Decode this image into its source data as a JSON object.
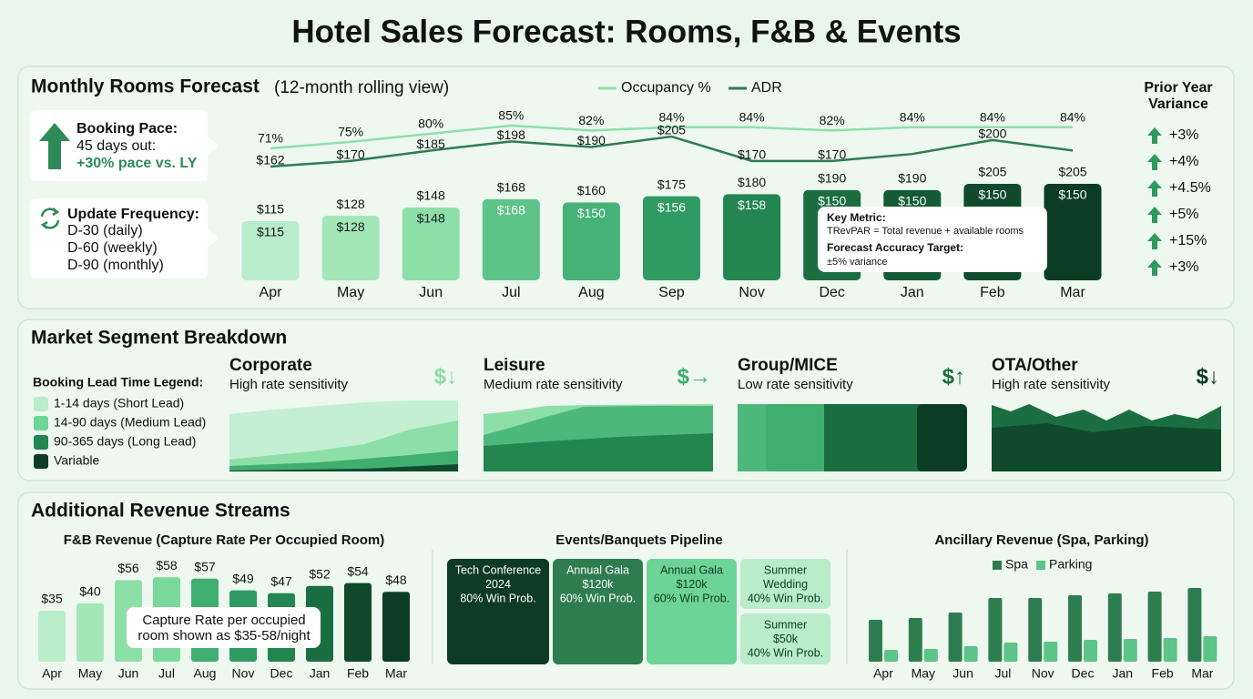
{
  "title": "Hotel Sales Forecast: Rooms, F&B & Events",
  "rooms": {
    "heading": "Monthly Rooms Forecast",
    "subheading": "(12-month rolling view)",
    "booking_pace": {
      "title": "Booking Pace:",
      "lines": [
        "45 days out:"
      ],
      "highlight": "+30% pace vs. LY"
    },
    "update_frequency": {
      "title": "Update Frequency:",
      "lines": [
        "D-30 (daily)",
        "D-60 (weekly)",
        "D-90 (monthly)"
      ]
    },
    "key_metric": {
      "title": "Key Metric:",
      "text": "TRevPAR = Total revenue + available rooms",
      "target_title": "Forecast Accuracy Target:",
      "target_text": "±5% variance"
    },
    "prior_year": {
      "title": [
        "Prior Year",
        "Variance"
      ],
      "values": [
        "+3%",
        "+4%",
        "+4.5%",
        "+5%",
        "+15%",
        "+3%"
      ],
      "color": "#2e9a5e"
    }
  },
  "segments": {
    "heading": "Market Segment Breakdown",
    "legend": {
      "title": "Booking Lead Time Legend:",
      "items": [
        {
          "label": "1-14 days (Short Lead)",
          "color": "#b9ecc8"
        },
        {
          "label": "14-90 days (Medium Lead)",
          "color": "#6dd497"
        },
        {
          "label": "90-365 days (Long Lead)",
          "color": "#23854f"
        },
        {
          "label": "Variable",
          "color": "#0b3d23"
        }
      ]
    },
    "cards": [
      {
        "name": "Corporate",
        "sensitivity": "High rate sensitivity",
        "icon": "$↓",
        "icon_color": "#8fd9a8"
      },
      {
        "name": "Leisure",
        "sensitivity": "Medium rate sensitivity",
        "icon": "$→",
        "icon_color": "#3fae70"
      },
      {
        "name": "Group/MICE",
        "sensitivity": "Low rate sensitivity",
        "icon": "$↑",
        "icon_color": "#1b6e40"
      },
      {
        "name": "OTA/Other",
        "sensitivity": "High rate sensitivity",
        "icon": "$↓",
        "icon_color": "#0b3d23"
      }
    ]
  },
  "revenue": {
    "heading": "Additional Revenue Streams",
    "events": {
      "title": "Events/Banquets Pipeline",
      "cards": [
        {
          "lines": [
            "Tech Conference",
            "2024",
            "80% Win Prob."
          ],
          "color": "#0d3b24",
          "text_color": "#ffffff"
        },
        {
          "lines": [
            "Annual Gala",
            "$120k",
            "60% Win Prob."
          ],
          "color": "#2e7d4f",
          "text_color": "#ffffff"
        },
        {
          "lines": [
            "Annual Gala",
            "$120k",
            "60% Win Prob."
          ],
          "color": "#6dd497",
          "text_color": "#0d3b24"
        },
        {
          "lines": [
            "Summer",
            "Wedding",
            "40% Win Prob."
          ],
          "color": "#b9ecc8",
          "text_color": "#0d3b24"
        },
        {
          "lines": [
            "Summer",
            "$50k",
            "40% Win Prob."
          ],
          "color": "#b9ecc8",
          "text_color": "#0d3b24"
        }
      ]
    }
  },
  "chart_data": [
    {
      "type": "combo",
      "categories": [
        "Apr",
        "May",
        "Jun",
        "Jul",
        "Aug",
        "Sep",
        "Nov",
        "Dec",
        "Jan",
        "Feb",
        "Mar"
      ],
      "bars": {
        "values": [
          115,
          128,
          148,
          168,
          160,
          175,
          180,
          190,
          190,
          205,
          205
        ],
        "value_labels": [
          "$115",
          "$128",
          "$148",
          "$168",
          "$160",
          "$175",
          "$180",
          "$190",
          "$190",
          "$205",
          "$205"
        ],
        "colors": [
          "#b9ecc8",
          "#a3e6b8",
          "#8ddfa8",
          "#5cc489",
          "#45b277",
          "#2f9a62",
          "#23854f",
          "#1b6e40",
          "#145a34",
          "#0f4a2b",
          "#0b3d23"
        ],
        "inner_values": [
          115,
          128,
          148,
          168,
          150,
          156,
          158,
          150,
          150,
          150,
          150
        ],
        "inner_value_labels": [
          "$115",
          "$128",
          "$148",
          "$168",
          "$150",
          "$156",
          "$158",
          "$150",
          "$150",
          "$150",
          "$150"
        ]
      },
      "series": [
        {
          "name": "Occupancy %",
          "color": "#8ee0a8",
          "values": [
            71,
            75,
            80,
            85,
            82,
            84,
            84,
            82,
            84,
            84,
            84
          ],
          "value_labels": [
            "71%",
            "75%",
            "80%",
            "85%",
            "82%",
            "84%",
            "84%",
            "82%",
            "84%",
            "84%",
            "84%"
          ]
        },
        {
          "name": "ADR",
          "color": "#2e7d4f",
          "values": [
            162,
            170,
            185,
            198,
            190,
            205,
            170,
            170,
            180,
            200,
            185
          ],
          "value_labels": [
            "$162",
            "$170",
            "$185",
            "$198",
            "$190",
            "$205",
            "$170",
            "$170",
            null,
            "$200",
            null
          ]
        }
      ]
    },
    {
      "type": "bar",
      "title": "F&B Revenue (Capture Rate Per Occupied Room)",
      "categories": [
        "Apr",
        "May",
        "Jun",
        "Jul",
        "Aug",
        "Nov",
        "Dec",
        "Jan",
        "Feb",
        "Mar"
      ],
      "values": [
        35,
        40,
        56,
        58,
        57,
        49,
        47,
        52,
        54,
        48
      ],
      "value_labels": [
        "$35",
        "$40",
        "$56",
        "$58",
        "$57",
        "$49",
        "$47",
        "$52",
        "$54",
        "$48"
      ],
      "colors": [
        "#b9ecc8",
        "#a3e6b8",
        "#8ddfa8",
        "#7ad89a",
        "#3fae70",
        "#2f9a62",
        "#23854f",
        "#1b6e40",
        "#0f4a2b",
        "#0b3d23"
      ],
      "annotation": [
        "Capture Rate per occupied",
        "room shown as $35-58/night"
      ]
    },
    {
      "type": "grouped-bar",
      "title": "Ancillary Revenue (Spa, Parking)",
      "categories": [
        "Apr",
        "May",
        "Jun",
        "Jul",
        "Nov",
        "Dec",
        "Jan",
        "Feb",
        "Mar"
      ],
      "series": [
        {
          "name": "Spa",
          "color": "#2e7d4f",
          "values": [
            46,
            48,
            54,
            70,
            70,
            73,
            75,
            77,
            81
          ]
        },
        {
          "name": "Parking",
          "color": "#5cc489",
          "values": [
            13,
            14,
            17,
            21,
            22,
            24,
            25,
            26,
            28
          ]
        }
      ]
    }
  ]
}
